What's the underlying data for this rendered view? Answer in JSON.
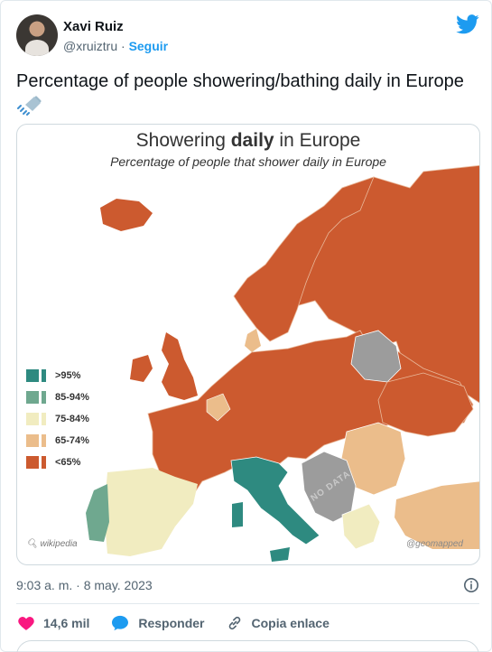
{
  "header": {
    "name": "Xavi Ruiz",
    "handle": "@xruiztru",
    "separator": " · ",
    "follow_label": "Seguir",
    "brand_color": "#1d9bf0"
  },
  "tweet": {
    "text": "Percentage of people showering/bathing daily in Europe",
    "emoji_icon": "shower-icon"
  },
  "map": {
    "title_pre": "Showering ",
    "title_bold": "daily",
    "title_post": " in Europe",
    "subtitle": "Percentage of people that shower daily in Europe",
    "legend": [
      {
        "label": ">95%",
        "color": "#2e8a80"
      },
      {
        "label": "85-94%",
        "color": "#6fa88f"
      },
      {
        "label": "75-84%",
        "color": "#f1ecc0"
      },
      {
        "label": "65-74%",
        "color": "#ebbd8b"
      },
      {
        "label": "<65%",
        "color": "#cc5a2f"
      }
    ],
    "no_data_label": "NO DATA",
    "source_left": "wikipedia",
    "source_right": "@geomapped"
  },
  "meta": {
    "timestamp": "9:03 a. m. · 8 may. 2023"
  },
  "actions": {
    "likes": "14,6 mil",
    "reply_label": "Responder",
    "copy_label": "Copia enlace",
    "like_color": "#f91880"
  }
}
